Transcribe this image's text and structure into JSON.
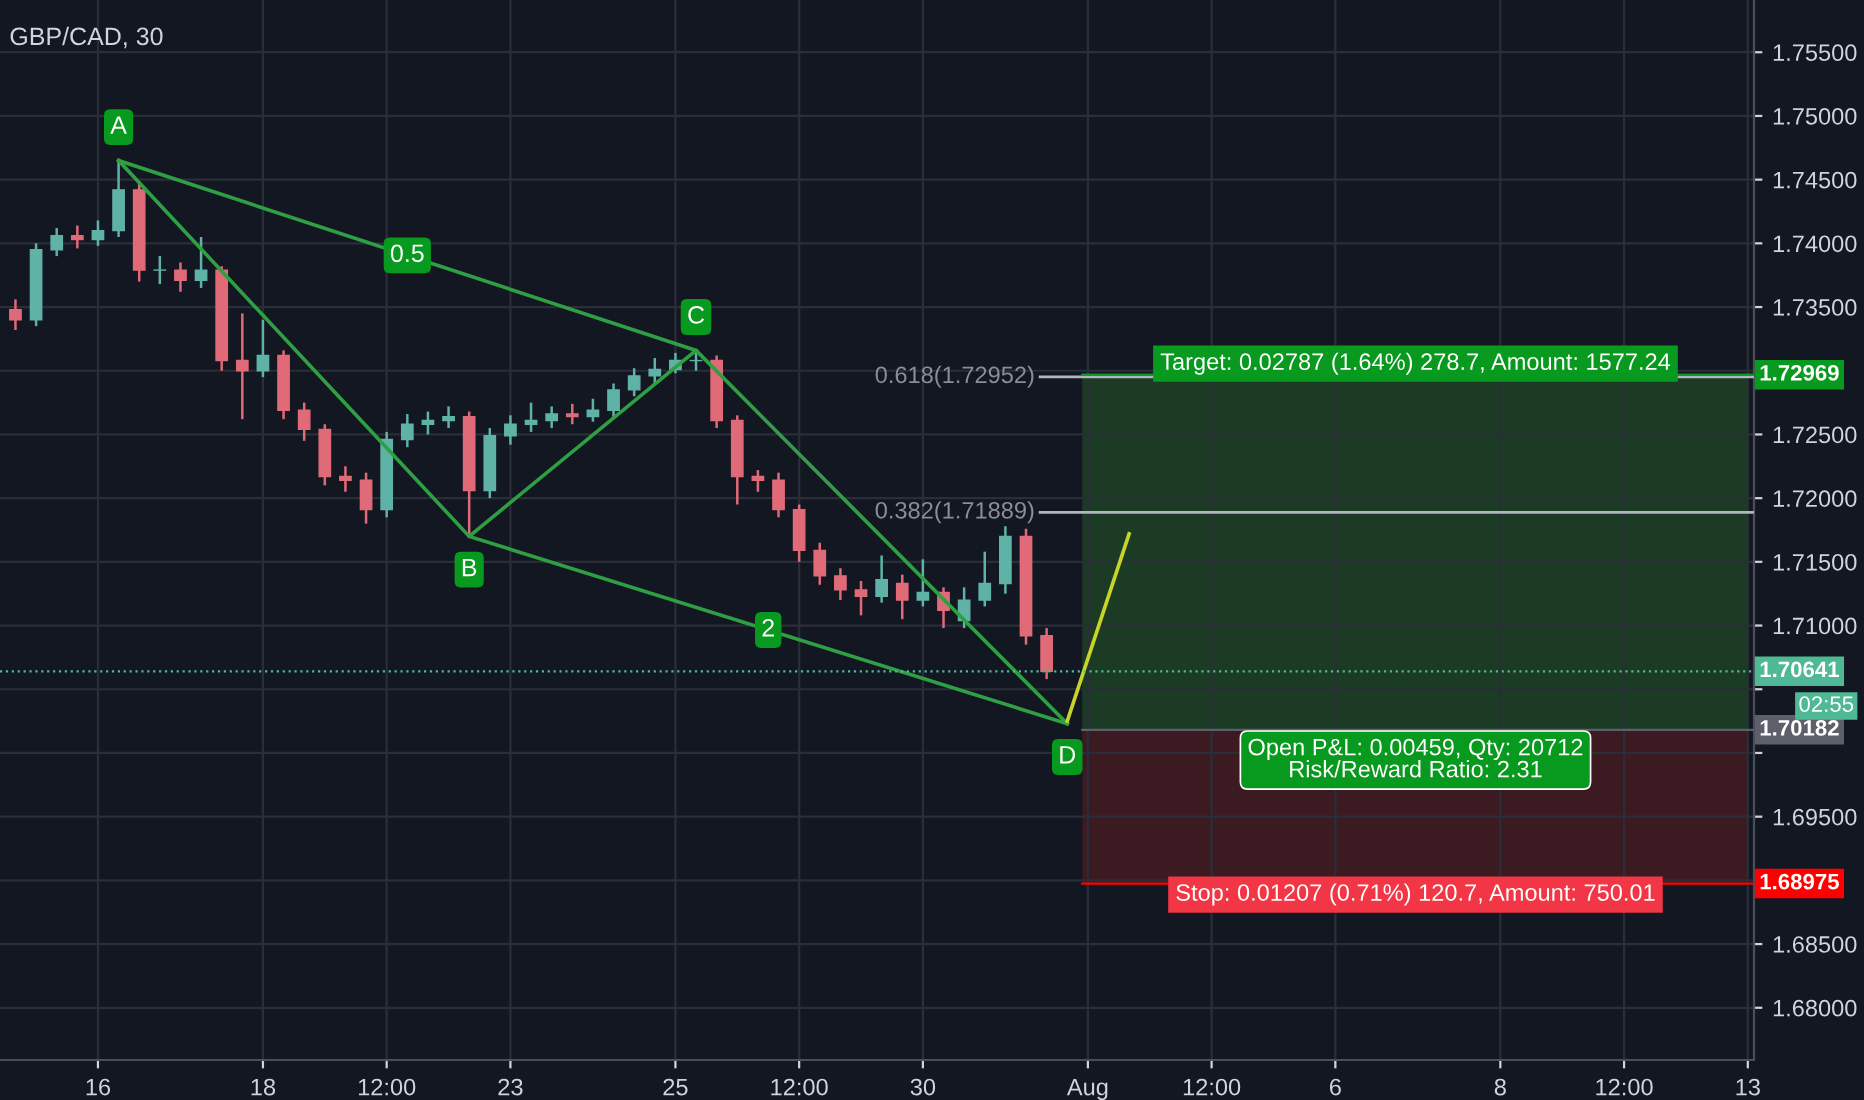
{
  "chart_data": {
    "type": "candlestick",
    "title": "GBP/CAD, 30",
    "categories": [
      null,
      null,
      null,
      null,
      "16",
      null,
      null,
      null,
      null,
      null,
      null,
      null,
      "18",
      null,
      null,
      null,
      null,
      null,
      "12:00",
      null,
      null,
      null,
      null,
      null,
      "23",
      null,
      null,
      null,
      null,
      null,
      null,
      null,
      "25",
      null,
      null,
      null,
      null,
      null,
      "12:00",
      null,
      null,
      null,
      null,
      null,
      "30",
      null,
      null,
      null,
      null,
      null,
      null,
      null,
      "Aug",
      null,
      null,
      null,
      null,
      null,
      "12:00",
      null,
      null,
      null,
      null,
      null,
      "6",
      null,
      null,
      null,
      null,
      null,
      null,
      null,
      "8",
      null,
      null,
      null,
      null,
      null,
      "12:00",
      null,
      null,
      null,
      null,
      null,
      "13"
    ],
    "ohlc": [
      [
        1.7348,
        1.7356,
        1.7332,
        1.734
      ],
      [
        1.734,
        1.74,
        1.7335,
        1.7395
      ],
      [
        1.7395,
        1.7412,
        1.739,
        1.7406
      ],
      [
        1.7406,
        1.7414,
        1.7396,
        1.7403
      ],
      [
        1.7403,
        1.7418,
        1.7398,
        1.741
      ],
      [
        1.741,
        1.7465,
        1.7405,
        1.7442
      ],
      [
        1.7442,
        1.7448,
        1.737,
        1.7379
      ],
      [
        1.7379,
        1.739,
        1.7368,
        1.7379
      ],
      [
        1.7379,
        1.7385,
        1.7362,
        1.7371
      ],
      [
        1.7371,
        1.7405,
        1.7365,
        1.7379
      ],
      [
        1.7379,
        1.7382,
        1.73,
        1.7308
      ],
      [
        1.7308,
        1.7345,
        1.7262,
        1.73
      ],
      [
        1.73,
        1.734,
        1.7295,
        1.7312
      ],
      [
        1.7312,
        1.7316,
        1.7262,
        1.7269
      ],
      [
        1.7269,
        1.7275,
        1.7245,
        1.7254
      ],
      [
        1.7254,
        1.7258,
        1.721,
        1.7217
      ],
      [
        1.7217,
        1.7225,
        1.7205,
        1.7214
      ],
      [
        1.7214,
        1.722,
        1.718,
        1.7191
      ],
      [
        1.7191,
        1.7252,
        1.7185,
        1.7246
      ],
      [
        1.7246,
        1.7266,
        1.724,
        1.7258
      ],
      [
        1.7258,
        1.7268,
        1.725,
        1.7261
      ],
      [
        1.7261,
        1.7272,
        1.7255,
        1.7264
      ],
      [
        1.7264,
        1.7268,
        1.717,
        1.7206
      ],
      [
        1.7206,
        1.7255,
        1.72,
        1.7249
      ],
      [
        1.7249,
        1.7265,
        1.7242,
        1.7258
      ],
      [
        1.7258,
        1.7275,
        1.7252,
        1.7261
      ],
      [
        1.7261,
        1.7272,
        1.7255,
        1.7266
      ],
      [
        1.7266,
        1.7274,
        1.7258,
        1.7264
      ],
      [
        1.7264,
        1.7278,
        1.726,
        1.7269
      ],
      [
        1.7269,
        1.729,
        1.7262,
        1.7285
      ],
      [
        1.7285,
        1.7302,
        1.728,
        1.7296
      ],
      [
        1.7296,
        1.731,
        1.729,
        1.7301
      ],
      [
        1.7301,
        1.7314,
        1.7298,
        1.7308
      ],
      [
        1.7308,
        1.7316,
        1.73,
        1.7308
      ],
      [
        1.7308,
        1.7312,
        1.7255,
        1.7261
      ],
      [
        1.7261,
        1.7265,
        1.7195,
        1.7217
      ],
      [
        1.7217,
        1.7222,
        1.7205,
        1.7214
      ],
      [
        1.7214,
        1.722,
        1.7185,
        1.7191
      ],
      [
        1.7191,
        1.7195,
        1.715,
        1.7159
      ],
      [
        1.7159,
        1.7165,
        1.7132,
        1.7139
      ],
      [
        1.7139,
        1.7145,
        1.712,
        1.7128
      ],
      [
        1.7128,
        1.7135,
        1.7108,
        1.7123
      ],
      [
        1.7123,
        1.7155,
        1.7118,
        1.7136
      ],
      [
        1.7133,
        1.714,
        1.7105,
        1.712
      ],
      [
        1.712,
        1.7152,
        1.7115,
        1.7126
      ],
      [
        1.7126,
        1.713,
        1.7098,
        1.7112
      ],
      [
        1.7104,
        1.713,
        1.7098,
        1.712
      ],
      [
        1.712,
        1.7158,
        1.7115,
        1.7133
      ],
      [
        1.7133,
        1.7178,
        1.7125,
        1.717
      ],
      [
        1.717,
        1.7176,
        1.7085,
        1.7092
      ],
      [
        1.7092,
        1.7098,
        1.7058,
        1.7064
      ],
      null,
      null,
      null,
      null,
      null,
      null,
      null,
      null,
      null,
      null,
      null,
      null,
      null,
      null,
      null,
      null,
      null,
      null,
      null,
      null,
      null,
      null,
      null,
      null,
      null,
      null,
      null,
      null,
      null,
      null,
      null,
      null,
      null,
      null
    ],
    "series": [
      {
        "type": "line",
        "color": "#2ea043",
        "values": [
          null,
          null,
          null,
          null,
          null,
          1.7465,
          null,
          null,
          null,
          null,
          null,
          null,
          null,
          null,
          null,
          null,
          null,
          null,
          null,
          null,
          null,
          null,
          1.717,
          null,
          null,
          null,
          null,
          null,
          null,
          null,
          null,
          null,
          null,
          1.7316,
          null,
          null,
          null,
          null,
          null,
          null,
          null,
          null,
          null,
          null,
          null,
          null,
          null,
          null,
          null,
          null,
          null,
          1.7023,
          null,
          null,
          null,
          null,
          null,
          null,
          null,
          null,
          null,
          null,
          null,
          null,
          null,
          null,
          null,
          null,
          null,
          null,
          null,
          null,
          null,
          null,
          null,
          null,
          null,
          null,
          null,
          null,
          null,
          null,
          null,
          null,
          null
        ]
      },
      {
        "type": "line",
        "color": "#2ea043",
        "values": [
          null,
          null,
          null,
          null,
          null,
          1.7465,
          null,
          null,
          null,
          null,
          null,
          null,
          null,
          null,
          null,
          null,
          null,
          null,
          null,
          null,
          null,
          null,
          null,
          null,
          null,
          null,
          null,
          null,
          null,
          null,
          null,
          null,
          null,
          1.7316,
          null,
          null,
          null,
          null,
          null,
          null,
          null,
          null,
          null,
          null,
          null,
          null,
          null,
          null,
          null,
          null,
          null,
          null,
          null,
          null,
          null,
          null,
          null,
          null,
          null,
          null,
          null,
          null,
          null,
          null,
          null,
          null,
          null,
          null,
          null,
          null,
          null,
          null,
          null,
          null,
          null,
          null,
          null,
          null,
          null,
          null,
          null,
          null,
          null,
          null,
          null
        ]
      },
      {
        "type": "line",
        "color": "#2ea043",
        "values": [
          null,
          null,
          null,
          null,
          null,
          null,
          null,
          null,
          null,
          null,
          null,
          null,
          null,
          null,
          null,
          null,
          null,
          null,
          null,
          null,
          null,
          null,
          1.717,
          null,
          null,
          null,
          null,
          null,
          null,
          null,
          null,
          null,
          null,
          null,
          null,
          null,
          null,
          null,
          null,
          null,
          null,
          null,
          null,
          null,
          null,
          null,
          null,
          null,
          null,
          null,
          null,
          1.7023,
          null,
          null,
          null,
          null,
          null,
          null,
          null,
          null,
          null,
          null,
          null,
          null,
          null,
          null,
          null,
          null,
          null,
          null,
          null,
          null,
          null,
          null,
          null,
          null,
          null,
          null,
          null,
          null,
          null,
          null,
          null,
          null,
          null
        ]
      },
      {
        "type": "line",
        "color": "#c8d42a",
        "values": [
          null,
          null,
          null,
          null,
          null,
          null,
          null,
          null,
          null,
          null,
          null,
          null,
          null,
          null,
          null,
          null,
          null,
          null,
          null,
          null,
          null,
          null,
          null,
          null,
          null,
          null,
          null,
          null,
          null,
          null,
          null,
          null,
          null,
          null,
          null,
          null,
          null,
          null,
          null,
          null,
          null,
          null,
          null,
          null,
          null,
          null,
          null,
          null,
          null,
          null,
          null,
          1.7025,
          null,
          null,
          1.7172,
          null,
          null,
          null,
          null,
          null,
          null,
          null,
          null,
          null,
          null,
          null,
          null,
          null,
          null,
          null,
          null,
          null,
          null,
          null,
          null,
          null,
          null,
          null,
          null,
          null,
          null,
          null,
          null,
          null,
          null
        ]
      }
    ],
    "annotations": [
      "A",
      "B",
      "C",
      "D",
      "0.5",
      "2",
      "Open P&L: 0.00459, Qty: 20712\nRisk/Reward Ratio: 2.31",
      "02:55"
    ],
    "bands": [
      {
        "axis": "y",
        "from": 1.70182,
        "to": 1.72969,
        "label": "Target: 0.02787 (1.64%) 278.7, Amount: 1577.24",
        "color": "#1b3d25"
      },
      {
        "axis": "y",
        "from": 1.68975,
        "to": 1.70182,
        "label": "Stop: 0.01207 (0.71%) 120.7, Amount: 750.01",
        "color": "#3d1a22"
      }
    ],
    "ref_lines": [
      {
        "axis": "y",
        "value": 1.72952,
        "label": "0.618(1.72952)"
      },
      {
        "axis": "y",
        "value": 1.71889,
        "label": "0.382(1.71889)"
      },
      {
        "axis": "y",
        "value": 1.72969,
        "label": "1.72969",
        "color": "#089a1e",
        "line_style": "solid"
      },
      {
        "axis": "y",
        "value": 1.70641,
        "label": "1.70641",
        "color": "#4fb895",
        "line_style": "dotted"
      },
      {
        "axis": "y",
        "value": 1.70182,
        "label": "1.70182",
        "color": "#5d606b",
        "line_style": "solid"
      },
      {
        "axis": "y",
        "value": 1.68975,
        "label": "1.68975",
        "color": "#ff0000",
        "line_style": "solid"
      }
    ],
    "ylim": [
      1.6759,
      1.7591
    ],
    "yticks": [
      {
        "value": 1.68,
        "label": "1.68000"
      },
      {
        "value": 1.685,
        "label": "1.68500"
      },
      {
        "value": 1.69,
        "label": null
      },
      {
        "value": 1.695,
        "label": "1.69500"
      },
      {
        "value": 1.7,
        "label": null
      },
      {
        "value": 1.705,
        "label": null
      },
      {
        "value": 1.71,
        "label": "1.71000"
      },
      {
        "value": 1.715,
        "label": "1.71500"
      },
      {
        "value": 1.72,
        "label": "1.72000"
      },
      {
        "value": 1.725,
        "label": "1.72500"
      },
      {
        "value": 1.73,
        "label": null
      },
      {
        "value": 1.735,
        "label": "1.73500"
      },
      {
        "value": 1.74,
        "label": "1.74000"
      },
      {
        "value": 1.745,
        "label": "1.74500"
      },
      {
        "value": 1.75,
        "label": "1.75000"
      },
      {
        "value": 1.755,
        "label": "1.75500"
      }
    ],
    "grid": true,
    "legend": false
  }
}
